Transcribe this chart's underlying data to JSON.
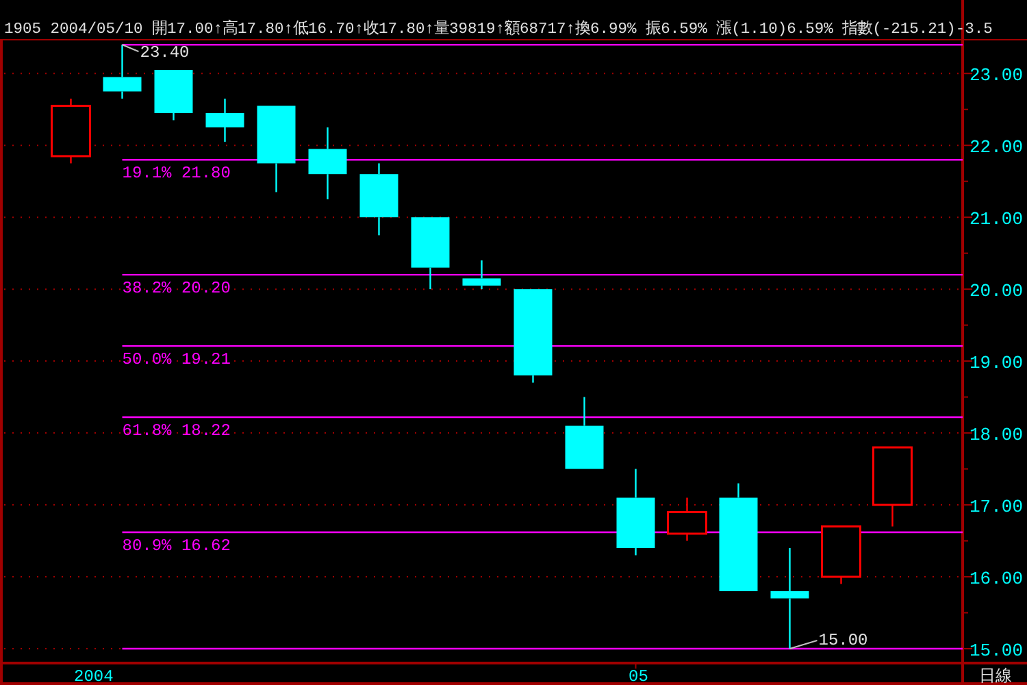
{
  "chart_data": {
    "type": "candlestick",
    "subtitle": "1905 2004/05/10 開17.00↑高17.80↑低16.70↑收17.80↑量39819↑額68717↑換6.99% 振6.59% 漲(1.10)6.59% 指數(-215.21)-3.5",
    "categories": [
      null,
      null,
      null,
      null,
      null,
      null,
      null,
      null,
      null,
      null,
      null,
      "05",
      null,
      null,
      null,
      null,
      null
    ],
    "ohlc": [
      [
        21.85,
        22.65,
        21.75,
        22.55
      ],
      [
        22.95,
        23.4,
        22.65,
        22.75
      ],
      [
        23.05,
        23.05,
        22.35,
        22.45
      ],
      [
        22.45,
        22.65,
        22.05,
        22.25
      ],
      [
        22.55,
        22.55,
        21.35,
        21.75
      ],
      [
        21.95,
        22.25,
        21.25,
        21.6
      ],
      [
        21.6,
        21.75,
        20.75,
        21.0
      ],
      [
        21.0,
        21.0,
        20.0,
        20.3
      ],
      [
        20.15,
        20.4,
        20.0,
        20.05
      ],
      [
        20.0,
        20.0,
        18.7,
        18.8
      ],
      [
        18.1,
        18.5,
        17.5,
        17.5
      ],
      [
        17.1,
        17.5,
        16.3,
        16.4
      ],
      [
        16.6,
        17.1,
        16.5,
        16.9
      ],
      [
        17.1,
        17.3,
        15.8,
        15.8
      ],
      [
        15.8,
        16.4,
        15.0,
        15.7
      ],
      [
        16.0,
        16.7,
        15.9,
        16.7
      ],
      [
        17.0,
        17.8,
        16.7,
        17.8
      ]
    ],
    "ylim": [
      14.8,
      23.45
    ],
    "yticks": [
      {
        "value": 15,
        "label": "15.00"
      },
      {
        "value": 15.5,
        "label": null
      },
      {
        "value": 16,
        "label": "16.00"
      },
      {
        "value": 16.5,
        "label": null
      },
      {
        "value": 17,
        "label": "17.00"
      },
      {
        "value": 17.5,
        "label": null
      },
      {
        "value": 18,
        "label": "18.00"
      },
      {
        "value": 18.5,
        "label": null
      },
      {
        "value": 19,
        "label": "19.00"
      },
      {
        "value": 19.5,
        "label": null
      },
      {
        "value": 20,
        "label": "20.00"
      },
      {
        "value": 20.5,
        "label": null
      },
      {
        "value": 21,
        "label": "21.00"
      },
      {
        "value": 21.5,
        "label": null
      },
      {
        "value": 22,
        "label": "22.00"
      },
      {
        "value": 22.5,
        "label": null
      },
      {
        "value": 23,
        "label": "23.00"
      }
    ],
    "grid": "y",
    "ref_lines": [
      {
        "axis": "y",
        "value": 23.4
      },
      {
        "axis": "y",
        "value": 21.8,
        "label": "19.1% 21.80"
      },
      {
        "axis": "y",
        "value": 20.2,
        "label": "38.2% 20.20"
      },
      {
        "axis": "y",
        "value": 19.21,
        "label": "50.0% 19.21"
      },
      {
        "axis": "y",
        "value": 18.22,
        "label": "61.8% 18.22"
      },
      {
        "axis": "y",
        "value": 16.62,
        "label": "80.9% 16.62"
      },
      {
        "axis": "y",
        "value": 15.0
      }
    ],
    "annotations": [
      {
        "text": "23.40",
        "y": 23.4
      },
      {
        "text": "15.00",
        "y": 15.0
      },
      "2004",
      "日線"
    ]
  }
}
